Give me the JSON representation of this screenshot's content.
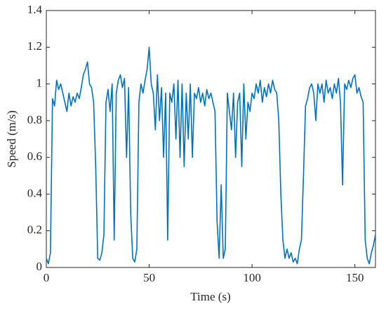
{
  "chart_data": {
    "type": "line",
    "xlabel": "Time (s)",
    "ylabel": "Speed (m/s)",
    "color": "#0072bd",
    "x": [
      0,
      1,
      2,
      3,
      4,
      5,
      6,
      7,
      8,
      9,
      10,
      11,
      12,
      13,
      14,
      15,
      16,
      17,
      18,
      19,
      20,
      21,
      22,
      23,
      24,
      25,
      26,
      27,
      28,
      29,
      30,
      31,
      32,
      33,
      34,
      35,
      36,
      37,
      38,
      39,
      40,
      41,
      42,
      43,
      44,
      45,
      46,
      47,
      48,
      49,
      50,
      51,
      52,
      53,
      54,
      55,
      56,
      57,
      58,
      59,
      60,
      61,
      62,
      63,
      64,
      65,
      66,
      67,
      68,
      69,
      70,
      71,
      72,
      73,
      74,
      75,
      76,
      77,
      78,
      79,
      80,
      81,
      82,
      83,
      84,
      85,
      86,
      87,
      88,
      89,
      90,
      91,
      92,
      93,
      94,
      95,
      96,
      97,
      98,
      99,
      100,
      101,
      102,
      103,
      104,
      105,
      106,
      107,
      108,
      109,
      110,
      111,
      112,
      113,
      114,
      115,
      116,
      117,
      118,
      119,
      120,
      121,
      122,
      123,
      124,
      125,
      126,
      127,
      128,
      129,
      130,
      131,
      132,
      133,
      134,
      135,
      136,
      137,
      138,
      139,
      140,
      141,
      142,
      143,
      144,
      145,
      146,
      147,
      148,
      149,
      150,
      151,
      152,
      153,
      154,
      155,
      156,
      157,
      158,
      159,
      160
    ],
    "values": [
      0.05,
      0.02,
      0.08,
      0.92,
      0.88,
      1.02,
      0.97,
      1.0,
      0.95,
      0.9,
      0.85,
      0.95,
      0.88,
      0.93,
      0.9,
      0.95,
      0.92,
      0.98,
      1.05,
      1.08,
      1.12,
      1.0,
      0.98,
      0.9,
      0.55,
      0.05,
      0.04,
      0.08,
      0.18,
      0.9,
      0.97,
      0.85,
      1.0,
      0.15,
      0.95,
      1.02,
      1.05,
      0.98,
      1.03,
      0.6,
      0.98,
      0.3,
      0.05,
      0.03,
      0.1,
      0.9,
      1.0,
      0.95,
      1.02,
      1.08,
      1.2,
      1.0,
      0.95,
      0.75,
      1.05,
      0.8,
      0.98,
      0.6,
      0.95,
      0.15,
      0.95,
      0.9,
      1.0,
      0.7,
      1.02,
      0.6,
      1.0,
      0.55,
      0.95,
      0.7,
      1.0,
      0.6,
      0.95,
      0.92,
      0.98,
      0.9,
      0.95,
      0.88,
      0.97,
      0.92,
      0.95,
      0.9,
      0.85,
      0.25,
      0.05,
      0.45,
      0.05,
      0.1,
      0.95,
      0.85,
      0.75,
      0.95,
      0.6,
      0.9,
      0.95,
      0.55,
      1.0,
      0.7,
      0.9,
      0.85,
      0.95,
      0.92,
      1.0,
      0.95,
      1.02,
      0.9,
      0.98,
      0.93,
      1.0,
      0.95,
      1.02,
      0.97,
      0.95,
      0.8,
      0.4,
      0.15,
      0.05,
      0.1,
      0.05,
      0.08,
      0.03,
      0.05,
      0.02,
      0.1,
      0.15,
      0.5,
      0.88,
      0.92,
      0.98,
      1.0,
      0.95,
      0.8,
      1.0,
      0.95,
      1.0,
      0.9,
      1.02,
      0.95,
      0.98,
      0.92,
      1.0,
      0.95,
      1.03,
      0.9,
      0.45,
      1.0,
      0.97,
      1.02,
      0.98,
      1.03,
      1.05,
      0.95,
      0.98,
      0.93,
      0.9,
      0.15,
      0.05,
      0.02,
      0.08,
      0.12,
      0.18
    ],
    "xlim": [
      0,
      160
    ],
    "xticks": [
      0,
      50,
      100,
      150
    ],
    "ylim": [
      0,
      1.4
    ],
    "yticks": [
      0,
      0.2,
      0.4,
      0.6,
      0.8,
      1,
      1.2,
      1.4
    ]
  }
}
